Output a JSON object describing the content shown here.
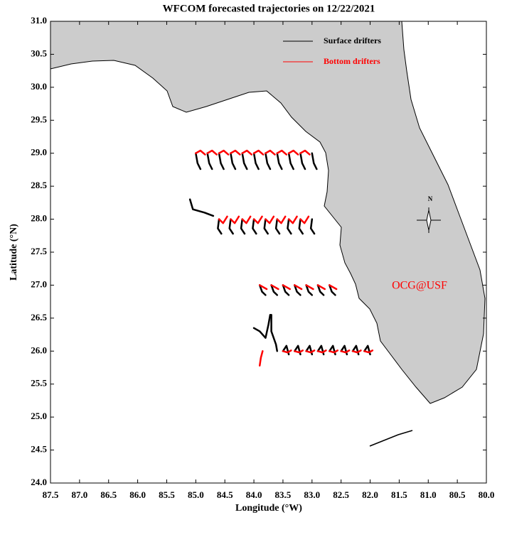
{
  "chart_data": {
    "type": "trajectory",
    "title": "WFCOM forecasted trajectories on 12/22/2021",
    "x_label": "Longitude (°W)",
    "y_label": "Latitude (°N)",
    "annotation": "OCG@USF",
    "compass_label": "N",
    "legend": "upper right",
    "xlim": [
      87.5,
      80
    ],
    "ylim": [
      24,
      31
    ],
    "xticks": [
      87.5,
      {
        "value": 87,
        "label": "87.0"
      },
      86.5,
      {
        "value": 86,
        "label": "86.0"
      },
      85.5,
      {
        "value": 85,
        "label": "85.0"
      },
      84.5,
      {
        "value": 84,
        "label": "84.0"
      },
      83.5,
      {
        "value": 83,
        "label": "83.0"
      },
      82.5,
      {
        "value": 82,
        "label": "82.0"
      },
      81.5,
      {
        "value": 81,
        "label": "81.0"
      },
      80.5,
      {
        "value": 80,
        "label": "80.0"
      }
    ],
    "yticks": [
      {
        "value": 24,
        "label": "24.0"
      },
      24.5,
      {
        "value": 25,
        "label": "25.0"
      },
      25.5,
      {
        "value": 26,
        "label": "26.0"
      },
      26.5,
      {
        "value": 27,
        "label": "27.0"
      },
      27.5,
      {
        "value": 28,
        "label": "28.0"
      },
      28.5,
      {
        "value": 29,
        "label": "29.0"
      },
      29.5,
      {
        "value": 30,
        "label": "30.0"
      },
      30.5,
      {
        "value": 31,
        "label": "31.0"
      }
    ],
    "series": [
      {
        "name": "Surface drifters",
        "color": "#000000",
        "tracks": [
          {
            "x": [
              85,
              84.97,
              84.92
            ],
            "y": [
              29,
              28.85,
              28.76
            ]
          },
          {
            "x": [
              84.8,
              84.77,
              84.72
            ],
            "y": [
              29,
              28.85,
              28.76
            ]
          },
          {
            "x": [
              84.6,
              84.57,
              84.52
            ],
            "y": [
              29,
              28.85,
              28.76
            ]
          },
          {
            "x": [
              84.4,
              84.37,
              84.32
            ],
            "y": [
              29,
              28.85,
              28.76
            ]
          },
          {
            "x": [
              84.2,
              84.17,
              84.12
            ],
            "y": [
              29,
              28.85,
              28.76
            ]
          },
          {
            "x": [
              84,
              83.97,
              83.92
            ],
            "y": [
              29,
              28.85,
              28.76
            ]
          },
          {
            "x": [
              83.8,
              83.77,
              83.72
            ],
            "y": [
              29,
              28.85,
              28.76
            ]
          },
          {
            "x": [
              83.6,
              83.57,
              83.52
            ],
            "y": [
              29,
              28.85,
              28.76
            ]
          },
          {
            "x": [
              83.4,
              83.37,
              83.32
            ],
            "y": [
              29,
              28.85,
              28.76
            ]
          },
          {
            "x": [
              83.2,
              83.17,
              83.12
            ],
            "y": [
              29,
              28.85,
              28.76
            ]
          },
          {
            "x": [
              83,
              82.97,
              82.92
            ],
            "y": [
              29,
              28.85,
              28.76
            ]
          },
          {
            "x": [
              85.1,
              85.05,
              84.85,
              84.7
            ],
            "y": [
              28.3,
              28.15,
              28.1,
              28.05
            ]
          },
          {
            "x": [
              84.6,
              84.62,
              84.56
            ],
            "y": [
              28,
              27.86,
              27.78
            ]
          },
          {
            "x": [
              84.4,
              84.42,
              84.36
            ],
            "y": [
              28,
              27.86,
              27.78
            ]
          },
          {
            "x": [
              84.2,
              84.22,
              84.16
            ],
            "y": [
              28,
              27.86,
              27.78
            ]
          },
          {
            "x": [
              84,
              84.02,
              83.96
            ],
            "y": [
              28,
              27.86,
              27.78
            ]
          },
          {
            "x": [
              83.8,
              83.82,
              83.76
            ],
            "y": [
              28,
              27.86,
              27.78
            ]
          },
          {
            "x": [
              83.6,
              83.62,
              83.56
            ],
            "y": [
              28,
              27.86,
              27.78
            ]
          },
          {
            "x": [
              83.4,
              83.42,
              83.36
            ],
            "y": [
              28,
              27.86,
              27.78
            ]
          },
          {
            "x": [
              83.2,
              83.22,
              83.16
            ],
            "y": [
              28,
              27.86,
              27.78
            ]
          },
          {
            "x": [
              83,
              83.02,
              82.96
            ],
            "y": [
              28,
              27.86,
              27.78
            ]
          },
          {
            "x": [
              83.9,
              83.86,
              83.8
            ],
            "y": [
              27,
              26.9,
              26.85
            ]
          },
          {
            "x": [
              83.7,
              83.66,
              83.6
            ],
            "y": [
              27,
              26.9,
              26.85
            ]
          },
          {
            "x": [
              83.5,
              83.46,
              83.4
            ],
            "y": [
              27,
              26.9,
              26.85
            ]
          },
          {
            "x": [
              83.3,
              83.26,
              83.2
            ],
            "y": [
              27,
              26.9,
              26.85
            ]
          },
          {
            "x": [
              83.1,
              83.06,
              83
            ],
            "y": [
              27,
              26.9,
              26.85
            ]
          },
          {
            "x": [
              82.9,
              82.86,
              82.8
            ],
            "y": [
              27,
              26.9,
              26.85
            ]
          },
          {
            "x": [
              82.7,
              82.66,
              82.6
            ],
            "y": [
              27,
              26.9,
              26.85
            ]
          },
          {
            "x": [
              84,
              83.9,
              83.8,
              83.75,
              83.72
            ],
            "y": [
              26.35,
              26.3,
              26.2,
              26.4,
              26.55
            ]
          },
          {
            "x": [
              83.7,
              83.7,
              83.62,
              83.6
            ],
            "y": [
              26.55,
              26.3,
              26.1,
              26
            ]
          },
          {
            "x": [
              83.5,
              83.44,
              83.4
            ],
            "y": [
              26,
              26.08,
              25.95
            ]
          },
          {
            "x": [
              83.3,
              83.24,
              83.2
            ],
            "y": [
              26,
              26.08,
              25.95
            ]
          },
          {
            "x": [
              83.1,
              83.04,
              83
            ],
            "y": [
              26,
              26.08,
              25.95
            ]
          },
          {
            "x": [
              82.9,
              82.84,
              82.8
            ],
            "y": [
              26,
              26.08,
              25.95
            ]
          },
          {
            "x": [
              82.7,
              82.64,
              82.6
            ],
            "y": [
              26,
              26.08,
              25.95
            ]
          },
          {
            "x": [
              82.5,
              82.44,
              82.4
            ],
            "y": [
              26,
              26.08,
              25.95
            ]
          },
          {
            "x": [
              82.3,
              82.24,
              82.2
            ],
            "y": [
              26,
              26.08,
              25.95
            ]
          },
          {
            "x": [
              82.1,
              82.04,
              82
            ],
            "y": [
              26,
              26.08,
              25.95
            ]
          }
        ]
      },
      {
        "name": "Bottom drifters",
        "color": "#ff0000",
        "tracks": [
          {
            "x": [
              85,
              84.92,
              84.84
            ],
            "y": [
              29,
              29.04,
              28.98
            ]
          },
          {
            "x": [
              84.8,
              84.72,
              84.64
            ],
            "y": [
              29,
              29.04,
              28.98
            ]
          },
          {
            "x": [
              84.6,
              84.52,
              84.44
            ],
            "y": [
              29,
              29.04,
              28.98
            ]
          },
          {
            "x": [
              84.4,
              84.32,
              84.24
            ],
            "y": [
              29,
              29.04,
              28.98
            ]
          },
          {
            "x": [
              84.2,
              84.12,
              84.04
            ],
            "y": [
              29,
              29.04,
              28.98
            ]
          },
          {
            "x": [
              84,
              83.92,
              83.84
            ],
            "y": [
              29,
              29.04,
              28.98
            ]
          },
          {
            "x": [
              83.8,
              83.72,
              83.64
            ],
            "y": [
              29,
              29.04,
              28.98
            ]
          },
          {
            "x": [
              83.6,
              83.52,
              83.44
            ],
            "y": [
              29,
              29.04,
              28.98
            ]
          },
          {
            "x": [
              83.4,
              83.32,
              83.24
            ],
            "y": [
              29,
              29.04,
              28.98
            ]
          },
          {
            "x": [
              83.2,
              83.12,
              83.04
            ],
            "y": [
              29,
              29.04,
              28.98
            ]
          },
          {
            "x": [
              84.6,
              84.53,
              84.46
            ],
            "y": [
              28,
              27.94,
              28.04
            ]
          },
          {
            "x": [
              84.4,
              84.33,
              84.26
            ],
            "y": [
              28,
              27.94,
              28.04
            ]
          },
          {
            "x": [
              84.2,
              84.13,
              84.06
            ],
            "y": [
              28,
              27.94,
              28.04
            ]
          },
          {
            "x": [
              84,
              83.93,
              83.86
            ],
            "y": [
              28,
              27.94,
              28.04
            ]
          },
          {
            "x": [
              83.8,
              83.73,
              83.66
            ],
            "y": [
              28,
              27.94,
              28.04
            ]
          },
          {
            "x": [
              83.6,
              83.53,
              83.46
            ],
            "y": [
              28,
              27.94,
              28.04
            ]
          },
          {
            "x": [
              83.4,
              83.33,
              83.26
            ],
            "y": [
              28,
              27.94,
              28.04
            ]
          },
          {
            "x": [
              83.2,
              83.13,
              83.06
            ],
            "y": [
              28,
              27.94,
              28.04
            ]
          },
          {
            "x": [
              83.9,
              83.84,
              83.78
            ],
            "y": [
              27,
              26.97,
              26.94
            ]
          },
          {
            "x": [
              83.7,
              83.64,
              83.58
            ],
            "y": [
              27,
              26.97,
              26.94
            ]
          },
          {
            "x": [
              83.5,
              83.44,
              83.38
            ],
            "y": [
              27,
              26.97,
              26.94
            ]
          },
          {
            "x": [
              83.3,
              83.24,
              83.18
            ],
            "y": [
              27,
              26.97,
              26.94
            ]
          },
          {
            "x": [
              83.1,
              83.04,
              82.98
            ],
            "y": [
              27,
              26.97,
              26.94
            ]
          },
          {
            "x": [
              82.9,
              82.84,
              82.78
            ],
            "y": [
              27,
              26.97,
              26.94
            ]
          },
          {
            "x": [
              82.7,
              82.64,
              82.58
            ],
            "y": [
              27,
              26.97,
              26.94
            ]
          },
          {
            "x": [
              83.85,
              83.88,
              83.9
            ],
            "y": [
              26,
              25.9,
              25.78
            ]
          },
          {
            "x": [
              83.5,
              83.42,
              83.36
            ],
            "y": [
              26,
              25.98,
              26.01
            ]
          },
          {
            "x": [
              83.3,
              83.22,
              83.16
            ],
            "y": [
              26,
              25.98,
              26.01
            ]
          },
          {
            "x": [
              83.1,
              83.02,
              82.96
            ],
            "y": [
              26,
              25.98,
              26.01
            ]
          },
          {
            "x": [
              82.9,
              82.82,
              82.76
            ],
            "y": [
              26,
              25.98,
              26.01
            ]
          },
          {
            "x": [
              82.7,
              82.62,
              82.56
            ],
            "y": [
              26,
              25.98,
              26.01
            ]
          },
          {
            "x": [
              82.5,
              82.42,
              82.36
            ],
            "y": [
              26,
              25.98,
              26.01
            ]
          },
          {
            "x": [
              82.3,
              82.22,
              82.16
            ],
            "y": [
              26,
              25.98,
              26.01
            ]
          },
          {
            "x": [
              82.1,
              82.02,
              81.96
            ],
            "y": [
              26,
              25.98,
              26.01
            ]
          }
        ]
      }
    ]
  }
}
